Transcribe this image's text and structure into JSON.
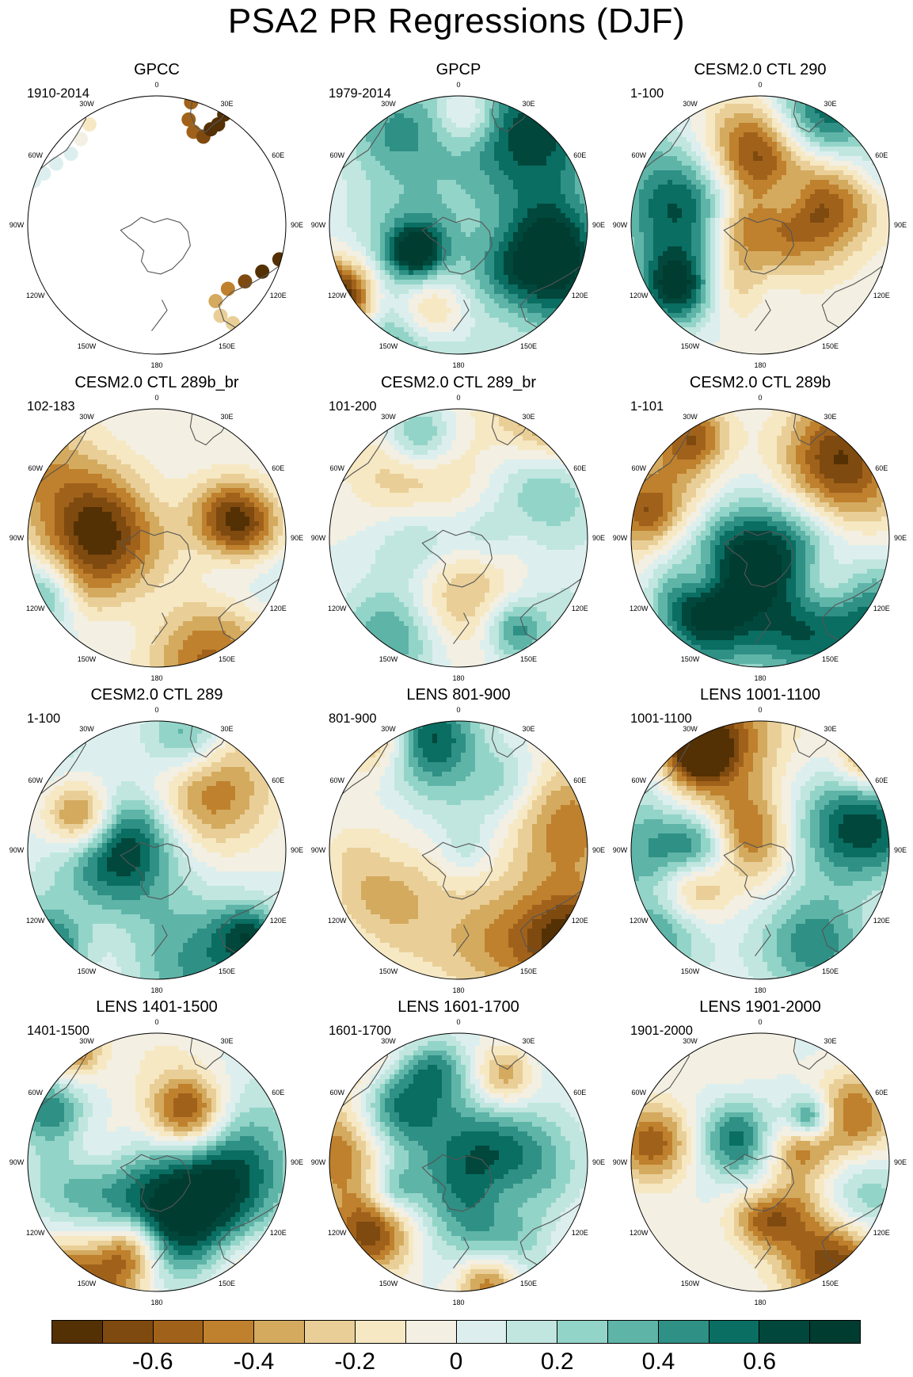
{
  "title": "PSA2 PR Regressions (DJF)",
  "longitude_labels": [
    "0",
    "30E",
    "60E",
    "90E",
    "120E",
    "150E",
    "180",
    "150W",
    "120W",
    "90W",
    "60W",
    "30W"
  ],
  "panels": [
    {
      "title": "GPCC",
      "period": "1910-2014",
      "land_only": true
    },
    {
      "title": "GPCP",
      "period": "1979-2014"
    },
    {
      "title": "CESM2.0 CTL 290",
      "period": "1-100"
    },
    {
      "title": "CESM2.0 CTL 289b_br",
      "period": "102-183"
    },
    {
      "title": "CESM2.0 CTL 289_br",
      "period": "101-200"
    },
    {
      "title": "CESM2.0 CTL 289b",
      "period": "1-101"
    },
    {
      "title": "CESM2.0 CTL 289",
      "period": "1-100"
    },
    {
      "title": "LENS 801-900",
      "period": "801-900"
    },
    {
      "title": "LENS 1001-1100",
      "period": "1001-1100"
    },
    {
      "title": "LENS 1401-1500",
      "period": "1401-1500"
    },
    {
      "title": "LENS 1601-1700",
      "period": "1601-1700"
    },
    {
      "title": "LENS 1901-2000",
      "period": "1901-2000"
    }
  ],
  "colorbar": {
    "colors": [
      "#543005",
      "#7f4a0f",
      "#a0621b",
      "#bf812d",
      "#d4aa5f",
      "#e9cf97",
      "#f6e8c3",
      "#f3efe2",
      "#dcefee",
      "#c0e6df",
      "#93d4c8",
      "#5fb4a8",
      "#2f9085",
      "#0a6e62",
      "#01473c",
      "#003c30"
    ],
    "tick_labels": [
      "-0.6",
      "-0.4",
      "-0.2",
      "0",
      "0.2",
      "0.4",
      "0.6"
    ],
    "tick_values": [
      -0.6,
      -0.4,
      -0.2,
      0,
      0.2,
      0.4,
      0.6
    ],
    "levels": [
      -0.7,
      -0.6,
      -0.5,
      -0.4,
      -0.3,
      -0.2,
      -0.1,
      0,
      0.1,
      0.2,
      0.3,
      0.4,
      0.5,
      0.6,
      0.7
    ]
  }
}
